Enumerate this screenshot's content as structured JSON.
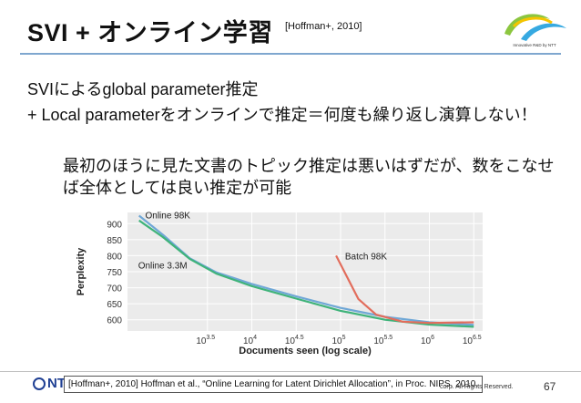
{
  "slide": {
    "title": "SVI + オンライン学習",
    "title_citation": "[Hoffman+, 2010]",
    "logo_text": "Innovative R&D by NTT",
    "bullet1": "SVIによるglobal parameter推定",
    "bullet2": "+ Local parameterをオンラインで推定＝何度も繰り返し演算しない！",
    "bullet3": "最初のほうに見た文書のトピック推定は悪いはずだが、数をこなせば全体としては良い推定が可能",
    "footer_logo": "NTT",
    "reference": "[Hoffman+, 2010] Hoffman et al., “Online Learning for Latent Dirichlet Allocation”, in Proc. NIPS, 2010.",
    "copyright": "corp. All Rights Reserved.",
    "page_number": "67"
  },
  "chart_data": {
    "type": "line",
    "xlabel": "Documents seen (log scale)",
    "ylabel": "Perplexity",
    "xscale": "log",
    "xlim_log10": [
      2.6,
      6.6
    ],
    "ylim": [
      565,
      935
    ],
    "x_ticks": [
      {
        "base": "10",
        "exp": "3.5",
        "log10": 3.5
      },
      {
        "base": "10",
        "exp": "4",
        "log10": 4
      },
      {
        "base": "10",
        "exp": "4.5",
        "log10": 4.5
      },
      {
        "base": "10",
        "exp": "5",
        "log10": 5
      },
      {
        "base": "10",
        "exp": "5.5",
        "log10": 5.5
      },
      {
        "base": "10",
        "exp": "6",
        "log10": 6
      },
      {
        "base": "10",
        "exp": "6.5",
        "log10": 6.5
      }
    ],
    "y_ticks": [
      600,
      650,
      700,
      750,
      800,
      850,
      900
    ],
    "grid": true,
    "series": [
      {
        "name": "Online 98K",
        "color": "#6fa7d6",
        "label_at": [
          2.8,
          917
        ],
        "points": [
          [
            2.73,
            925
          ],
          [
            3.0,
            865
          ],
          [
            3.3,
            792
          ],
          [
            3.6,
            748
          ],
          [
            4.0,
            712
          ],
          [
            4.5,
            673
          ],
          [
            5.0,
            637
          ],
          [
            5.5,
            609
          ],
          [
            6.0,
            592
          ],
          [
            6.5,
            584
          ]
        ]
      },
      {
        "name": "Online 3.3M",
        "color": "#3fb37a",
        "label_at": [
          2.72,
          760
        ],
        "points": [
          [
            2.73,
            910
          ],
          [
            3.0,
            858
          ],
          [
            3.3,
            790
          ],
          [
            3.6,
            744
          ],
          [
            4.0,
            705
          ],
          [
            4.5,
            666
          ],
          [
            5.0,
            628
          ],
          [
            5.5,
            600
          ],
          [
            6.0,
            585
          ],
          [
            6.5,
            578
          ]
        ]
      },
      {
        "name": "Batch 98K",
        "color": "#e26d5c",
        "label_at": [
          5.05,
          788
        ],
        "points": [
          [
            4.95,
            800
          ],
          [
            5.2,
            665
          ],
          [
            5.4,
            616
          ],
          [
            5.7,
            594
          ],
          [
            6.0,
            590
          ],
          [
            6.5,
            592
          ]
        ]
      }
    ]
  }
}
